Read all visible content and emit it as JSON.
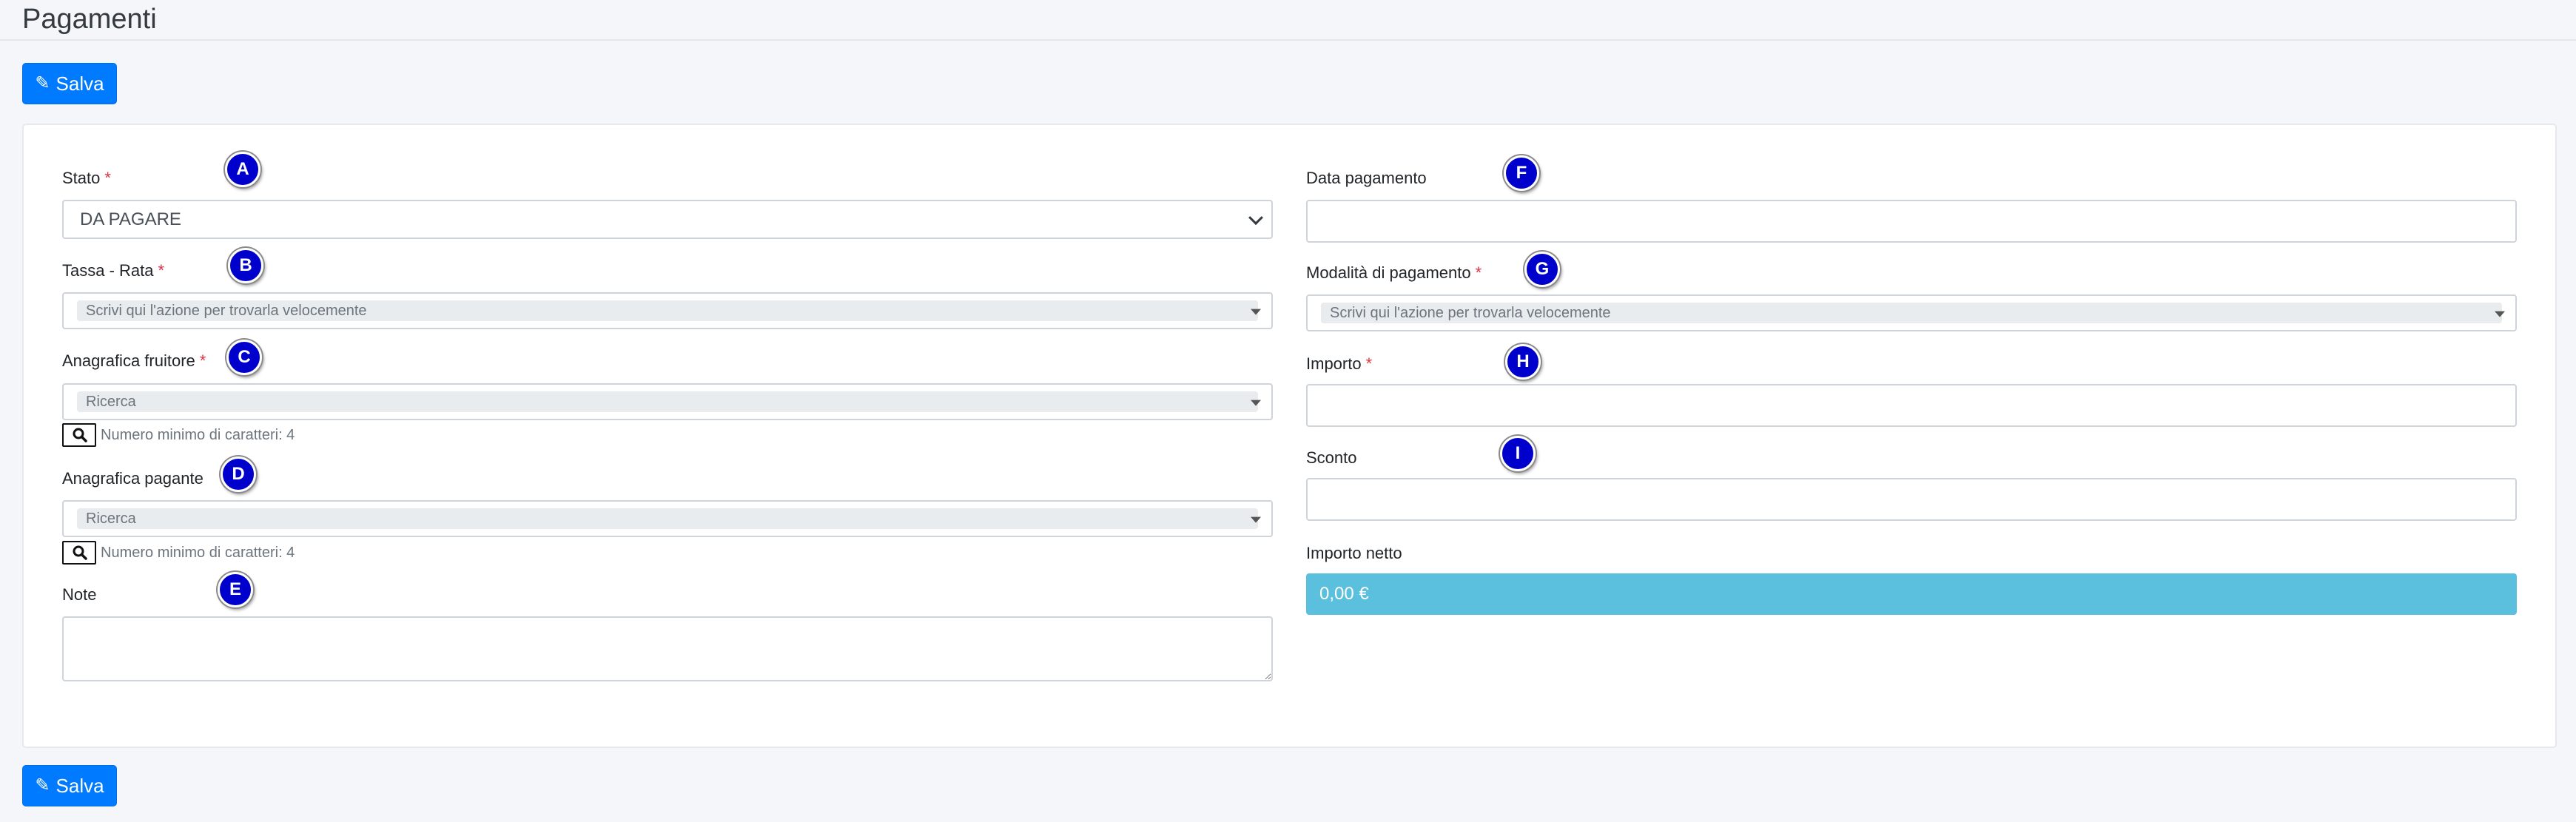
{
  "page": {
    "title": "Pagamenti"
  },
  "toolbar": {
    "save_label": "Salva"
  },
  "footer": {
    "save_label": "Salva"
  },
  "form": {
    "required_mark": "*",
    "left": {
      "stato": {
        "label": "Stato",
        "marker": "A",
        "value": "DA PAGARE"
      },
      "tassa_rata": {
        "label": "Tassa - Rata",
        "marker": "B",
        "placeholder": "Scrivi qui l'azione per trovarla velocemente"
      },
      "anagrafica_fruitore": {
        "label": "Anagrafica fruitore",
        "marker": "C",
        "placeholder": "Ricerca",
        "hint": "Numero minimo di caratteri: 4"
      },
      "anagrafica_pagante": {
        "label": "Anagrafica pagante",
        "marker": "D",
        "placeholder": "Ricerca",
        "hint": "Numero minimo di caratteri: 4"
      },
      "note": {
        "label": "Note",
        "marker": "E",
        "value": ""
      }
    },
    "right": {
      "data_pagamento": {
        "label": "Data pagamento",
        "marker": "F",
        "value": ""
      },
      "modalita_pagamento": {
        "label": "Modalità di pagamento",
        "marker": "G",
        "placeholder": "Scrivi qui l'azione per trovarla velocemente"
      },
      "importo": {
        "label": "Importo",
        "marker": "H",
        "value": ""
      },
      "sconto": {
        "label": "Sconto",
        "marker": "I",
        "value": ""
      },
      "importo_netto": {
        "label": "Importo netto",
        "value": "0,00 €"
      }
    }
  },
  "colors": {
    "primary": "#007bff",
    "required": "#dc3545",
    "info": "#5bc0de",
    "marker": "#0000cc"
  },
  "icons": {
    "save": "edit-icon",
    "search": "search-icon"
  }
}
